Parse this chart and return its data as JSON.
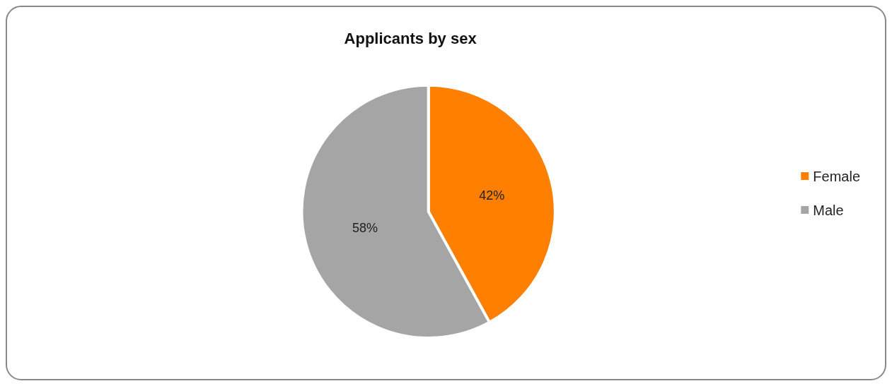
{
  "chart_data": {
    "type": "pie",
    "title": "Applicants by sex",
    "categories": [
      "Female",
      "Male"
    ],
    "values": [
      42,
      58
    ],
    "colors": [
      "#ff7f00",
      "#a5a5a5"
    ],
    "value_labels": [
      "42%",
      "58%"
    ],
    "legend": "right"
  }
}
